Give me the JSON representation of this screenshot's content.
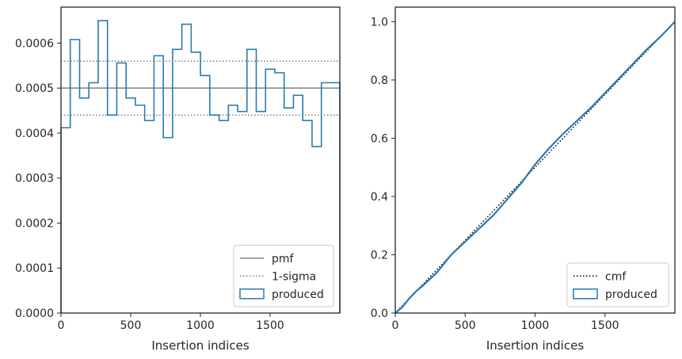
{
  "chart_data": [
    {
      "type": "step",
      "xlabel": "Insertion indices",
      "ylabel": "",
      "xlim": [
        0,
        2000
      ],
      "ylim": [
        0,
        0.00068
      ],
      "xticks": [
        0,
        500,
        1000,
        1500
      ],
      "xtick_labels": [
        "0",
        "500",
        "1000",
        "1500"
      ],
      "yticks": [
        0,
        0.0001,
        0.0002,
        0.0003,
        0.0004,
        0.0005,
        0.0006
      ],
      "ytick_labels": [
        "0.0000",
        "0.0001",
        "0.0002",
        "0.0003",
        "0.0004",
        "0.0005",
        "0.0006"
      ],
      "bin_width": 66.7,
      "bin_values": [
        0.000412,
        0.000608,
        0.000478,
        0.000512,
        0.00065,
        0.00044,
        0.000556,
        0.000478,
        0.000462,
        0.000428,
        0.000572,
        0.00039,
        0.000586,
        0.000642,
        0.00058,
        0.000528,
        0.00044,
        0.000428,
        0.000462,
        0.000448,
        0.000586,
        0.000448,
        0.000542,
        0.000534,
        0.000456,
        0.000484,
        0.000428,
        0.00037,
        0.000512,
        0.000512
      ],
      "pmf": 0.0005,
      "sigma_upper": 0.00056,
      "sigma_lower": 0.00044,
      "legend": {
        "position": "lower right",
        "entries": [
          {
            "label": "pmf",
            "style": "solid",
            "color": "#808080"
          },
          {
            "label": "1-sigma",
            "style": "dotted",
            "color": "#808080"
          },
          {
            "label": "produced",
            "style": "box",
            "color": "#2a7ab0"
          }
        ]
      },
      "colors": {
        "produced": "#2a7ab0",
        "reference": "#808080"
      }
    },
    {
      "type": "line",
      "xlabel": "Insertion indices",
      "ylabel": "",
      "xlim": [
        0,
        2000
      ],
      "ylim": [
        0,
        1.05
      ],
      "xticks": [
        0,
        500,
        1000,
        1500
      ],
      "xtick_labels": [
        "0",
        "500",
        "1000",
        "1500"
      ],
      "yticks": [
        0,
        0.2,
        0.4,
        0.6,
        0.8,
        1.0
      ],
      "ytick_labels": [
        "0.0",
        "0.2",
        "0.4",
        "0.6",
        "0.8",
        "1.0"
      ],
      "series": [
        {
          "name": "cmf",
          "style": "dotted",
          "color": "#000000",
          "x": [
            0,
            2000
          ],
          "y": [
            0,
            1.0
          ]
        },
        {
          "name": "produced",
          "style": "solid",
          "color": "#2a7ab0",
          "x": [
            0,
            50,
            100,
            150,
            200,
            300,
            400,
            500,
            600,
            700,
            800,
            900,
            1000,
            1100,
            1200,
            1300,
            1400,
            1500,
            1600,
            1700,
            1800,
            1900,
            2000
          ],
          "y": [
            0,
            0.02,
            0.05,
            0.075,
            0.095,
            0.14,
            0.2,
            0.245,
            0.29,
            0.335,
            0.39,
            0.445,
            0.51,
            0.565,
            0.615,
            0.66,
            0.705,
            0.755,
            0.805,
            0.855,
            0.905,
            0.95,
            1.0
          ]
        }
      ],
      "legend": {
        "position": "lower right",
        "entries": [
          {
            "label": "cmf",
            "style": "dotted",
            "color": "#000000"
          },
          {
            "label": "produced",
            "style": "box",
            "color": "#2a7ab0"
          }
        ]
      }
    }
  ]
}
